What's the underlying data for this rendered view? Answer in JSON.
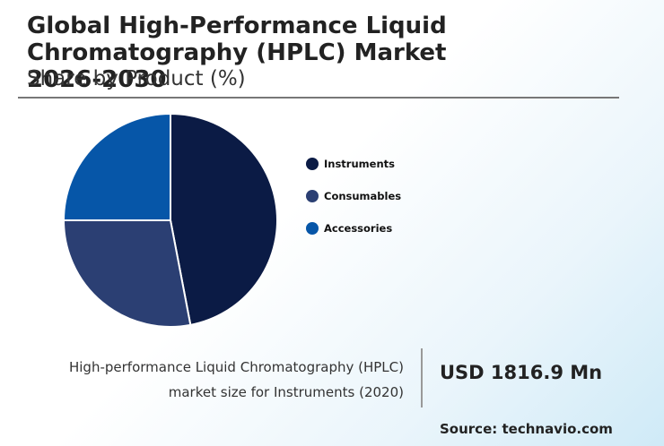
{
  "header": {
    "title": "Global High-Performance Liquid Chromatography (HPLC) Market 2026-2030",
    "subtitle": "Share by Product (%)"
  },
  "chart_data": {
    "type": "pie",
    "slices": [
      {
        "label": "Instruments",
        "value": 47,
        "color": "#0b1b45"
      },
      {
        "label": "Consumables",
        "value": 28,
        "color": "#2b3f73"
      },
      {
        "label": "Accessories",
        "value": 25,
        "color": "#0656a8"
      }
    ],
    "legend_position": "right"
  },
  "footer": {
    "description_line1": "High-performance Liquid Chromatography (HPLC)",
    "description_line2": "market size for Instruments (2020)",
    "value": "USD 1816.9 Mn",
    "source": "Source: technavio.com"
  }
}
